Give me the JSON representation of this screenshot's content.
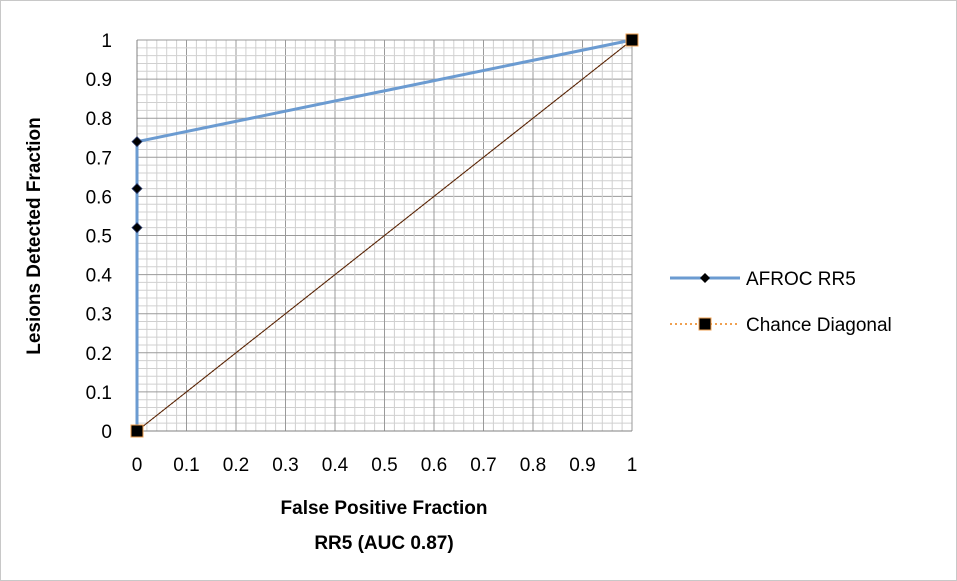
{
  "chart_data": {
    "type": "line",
    "xlabel": "False Positive Fraction",
    "xlabel2": "RR5 (AUC 0.87)",
    "ylabel": "Lesions Detected Fraction",
    "xlim": [
      0,
      1
    ],
    "ylim": [
      0,
      1
    ],
    "x_ticks": [
      "0",
      "0.1",
      "0.2",
      "0.3",
      "0.4",
      "0.5",
      "0.6",
      "0.7",
      "0.8",
      "0.9",
      "1"
    ],
    "y_ticks": [
      "0",
      "0.1",
      "0.2",
      "0.3",
      "0.4",
      "0.5",
      "0.6",
      "0.7",
      "0.8",
      "0.9",
      "1"
    ],
    "grid": true,
    "legend_position": "right",
    "series": [
      {
        "name": "AFROC RR5",
        "color": "#6b9bd1",
        "marker_color": "#000000",
        "marker": "diamond",
        "line_style": "solid",
        "points": [
          [
            0,
            0
          ],
          [
            0,
            0.52
          ],
          [
            0,
            0.62
          ],
          [
            0,
            0.74
          ],
          [
            1,
            1
          ]
        ]
      },
      {
        "name": "Chance Diagonal",
        "color": "#f0a050",
        "marker_color": "#000000",
        "marker": "square",
        "line_style": "dotted",
        "points": [
          [
            0,
            0
          ],
          [
            1,
            1
          ]
        ]
      }
    ]
  }
}
